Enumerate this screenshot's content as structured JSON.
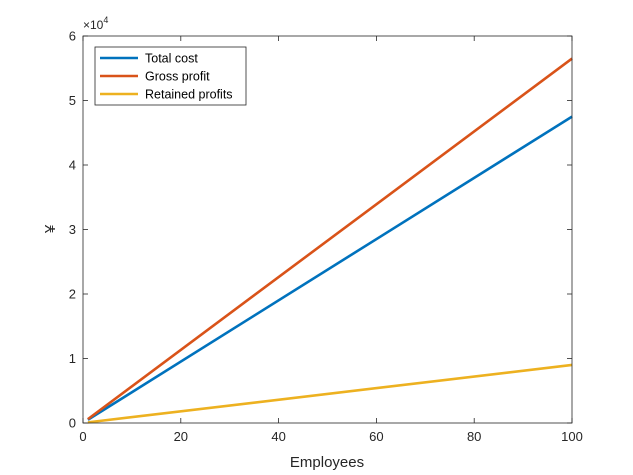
{
  "chart_data": {
    "type": "line",
    "xlabel": "Employees",
    "ylabel": "¥",
    "xlim": [
      0,
      100
    ],
    "ylim": [
      0,
      60000
    ],
    "xticks": [
      0,
      20,
      40,
      60,
      80,
      100
    ],
    "xtick_labels": [
      "0",
      "20",
      "40",
      "60",
      "80",
      "100"
    ],
    "yticks": [
      0,
      10000,
      20000,
      30000,
      40000,
      50000,
      60000
    ],
    "ytick_labels": [
      "0",
      "1",
      "2",
      "3",
      "4",
      "5",
      "6"
    ],
    "y_exponent": {
      "base": "×10",
      "power": "4"
    },
    "grid": false,
    "legend_position": "top-left",
    "series": [
      {
        "name": "Total cost",
        "color": "#0072BD",
        "x": [
          1,
          100
        ],
        "y": [
          500,
          47500
        ]
      },
      {
        "name": "Gross profit",
        "color": "#D95319",
        "x": [
          1,
          100
        ],
        "y": [
          600,
          56500
        ]
      },
      {
        "name": "Retained profits",
        "color": "#EDB120",
        "x": [
          1,
          100
        ],
        "y": [
          100,
          9000
        ]
      }
    ]
  }
}
